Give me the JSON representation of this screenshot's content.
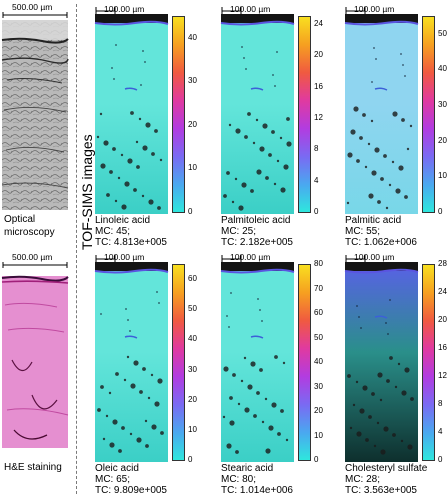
{
  "left_column": {
    "optical": {
      "scalebar": "500.00 µm",
      "caption_line1": "Optical",
      "caption_line2": "microscopy"
    },
    "he": {
      "scalebar": "500.00 µm",
      "caption": "H&E staining"
    }
  },
  "side_title": "TOF-SIMS images",
  "panels": [
    {
      "scalebar": "100.00 µm",
      "name": "Linoleic acid",
      "mc": "MC:   45;",
      "tc": "TC: 4.813e+005",
      "ticks": [
        "40",
        "30",
        "20",
        "10",
        "0"
      ],
      "max": 45,
      "palette": "cool"
    },
    {
      "scalebar": "100.00 µm",
      "name": "Palmitoleic acid",
      "mc": "MC:   25;",
      "tc": "TC: 2.182e+005",
      "ticks": [
        "24",
        "20",
        "16",
        "12",
        "8",
        "4",
        "0"
      ],
      "max": 25,
      "palette": "cool"
    },
    {
      "scalebar": "100.00 µm",
      "name": "Palmitic acid",
      "mc": "MC:   55;",
      "tc": "TC: 1.062e+006",
      "ticks": [
        "50",
        "40",
        "30",
        "20",
        "10",
        "0"
      ],
      "max": 55,
      "palette": "lightblue"
    },
    {
      "scalebar": "100.00 µm",
      "name": "Oleic acid",
      "mc": "MC:   65;",
      "tc": "TC: 9.809e+005",
      "ticks": [
        "60",
        "50",
        "40",
        "30",
        "20",
        "10",
        "0"
      ],
      "max": 65,
      "palette": "cool"
    },
    {
      "scalebar": "100.00 µm",
      "name": "Stearic acid",
      "mc": "MC:   80;",
      "tc": "TC: 1.014e+006",
      "ticks": [
        "80",
        "70",
        "60",
        "50",
        "40",
        "30",
        "20",
        "10",
        "0"
      ],
      "max": 80,
      "palette": "cool"
    },
    {
      "scalebar": "100.00 µm",
      "name": "Cholesteryl sulfate",
      "mc": "MC:   28;",
      "tc": "TC: 3.563e+005",
      "ticks": [
        "28",
        "24",
        "20",
        "16",
        "12",
        "8",
        "4",
        "0"
      ],
      "max": 28,
      "palette": "dark"
    }
  ],
  "colors": {
    "colormap": [
      "#2ee8dd",
      "#4aa8f0",
      "#7a6af2",
      "#b23ce0",
      "#e03aa0",
      "#f05a40",
      "#f6a020",
      "#f8e020"
    ]
  }
}
